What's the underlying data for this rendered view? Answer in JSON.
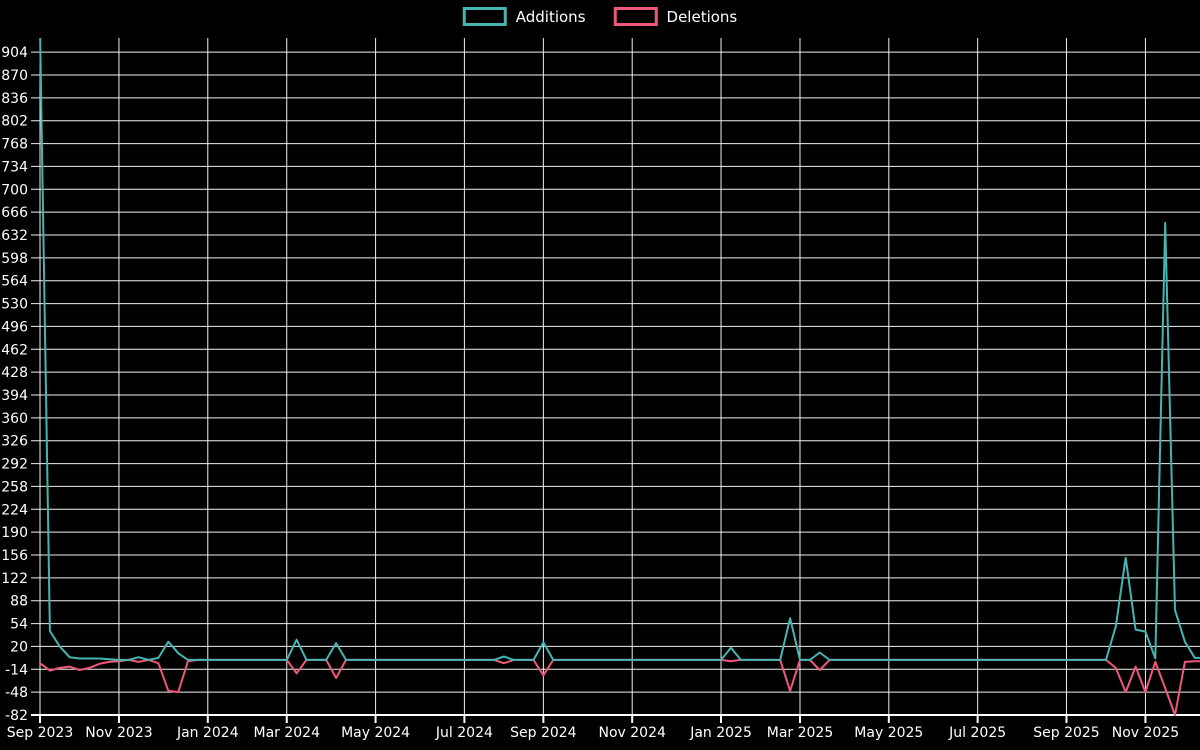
{
  "legend": {
    "items": [
      {
        "label": "Additions",
        "color": "#45b5b1"
      },
      {
        "label": "Deletions",
        "color": "#ef5878"
      }
    ]
  },
  "chart_data": {
    "type": "line",
    "title": "",
    "background": "#000000",
    "gridline_color": "#efefef",
    "x_unit": "week",
    "x_axis": {
      "tick_labels": [
        "Sep 2023",
        "Nov 2023",
        "Jan 2024",
        "Mar 2024",
        "May 2024",
        "Jul 2024",
        "Sep 2024",
        "Nov 2024",
        "Jan 2025",
        "Mar 2025",
        "May 2025",
        "Jul 2025",
        "Sep 2025",
        "Nov 2025"
      ],
      "tick_week_index": [
        0,
        8,
        17,
        25,
        34,
        43,
        51,
        60,
        69,
        77,
        86,
        95,
        104,
        112
      ]
    },
    "y_axis": {
      "ticks": [
        904,
        870,
        836,
        802,
        768,
        734,
        700,
        666,
        632,
        598,
        564,
        530,
        496,
        462,
        428,
        394,
        360,
        326,
        292,
        258,
        224,
        190,
        156,
        122,
        88,
        54,
        20,
        -14,
        -48,
        -82
      ],
      "range": [
        -82,
        922
      ]
    },
    "series": [
      {
        "name": "Additions",
        "color": "#45b5b1",
        "values": [
          940,
          43,
          20,
          4,
          2,
          2,
          2,
          1,
          0,
          0,
          4,
          0,
          3,
          27,
          10,
          0,
          0,
          0,
          0,
          0,
          0,
          0,
          0,
          0,
          0,
          0,
          30,
          0,
          0,
          0,
          25,
          0,
          0,
          0,
          0,
          0,
          0,
          0,
          0,
          0,
          0,
          0,
          0,
          0,
          0,
          0,
          0,
          5,
          0,
          0,
          0,
          26,
          0,
          0,
          0,
          0,
          0,
          0,
          0,
          0,
          0,
          0,
          0,
          0,
          0,
          0,
          0,
          0,
          0,
          0,
          18,
          0,
          0,
          0,
          0,
          0,
          62,
          0,
          0,
          11,
          0,
          0,
          0,
          0,
          0,
          0,
          0,
          0,
          0,
          0,
          0,
          0,
          0,
          0,
          0,
          0,
          0,
          0,
          0,
          0,
          0,
          0,
          0,
          0,
          0,
          0,
          0,
          0,
          0,
          50,
          152,
          45,
          42,
          2,
          650,
          74,
          27,
          3,
          3
        ]
      },
      {
        "name": "Deletions",
        "color": "#ef5878",
        "values": [
          -5,
          -16,
          -12,
          -10,
          -15,
          -12,
          -6,
          -3,
          -2,
          0,
          -3,
          0,
          -5,
          -46,
          -48,
          -2,
          0,
          0,
          0,
          0,
          0,
          0,
          0,
          0,
          0,
          0,
          -20,
          0,
          0,
          0,
          -27,
          0,
          0,
          0,
          0,
          0,
          0,
          0,
          0,
          0,
          0,
          0,
          0,
          0,
          0,
          0,
          0,
          -5,
          0,
          0,
          0,
          -23,
          0,
          0,
          0,
          0,
          0,
          0,
          0,
          0,
          0,
          0,
          0,
          0,
          0,
          0,
          0,
          0,
          0,
          0,
          -2,
          0,
          0,
          0,
          0,
          0,
          -46,
          0,
          0,
          -15,
          0,
          0,
          0,
          0,
          0,
          0,
          0,
          0,
          0,
          0,
          0,
          0,
          0,
          0,
          0,
          0,
          0,
          0,
          0,
          0,
          0,
          0,
          0,
          0,
          0,
          0,
          0,
          0,
          0,
          -12,
          -48,
          -10,
          -48,
          -3,
          -42,
          -82,
          -3,
          -2,
          -2
        ]
      }
    ]
  }
}
